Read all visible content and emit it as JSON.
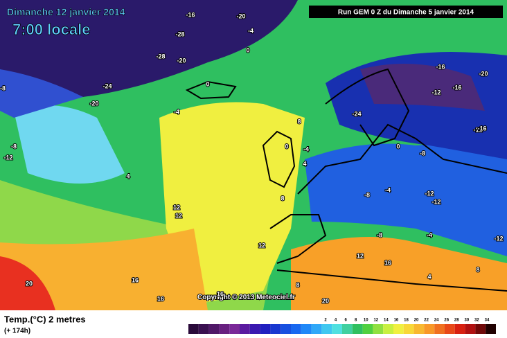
{
  "header": {
    "date": "Dimanche 12 janvier 2014",
    "time": "7:00 locale",
    "run": "Run GEM 0 Z du Dimanche 5 janvier 2014"
  },
  "copyright": "Copyright © 2013 Meteociel.fr",
  "legend": {
    "title": "Temp.(°C) 2 metres",
    "lead": "(+ 174h)",
    "scale_labels": [
      2,
      4,
      6,
      8,
      10,
      12,
      14,
      16,
      18,
      20,
      22,
      24,
      26,
      28,
      30,
      32,
      34
    ]
  },
  "contour_labels": [
    -16,
    -20,
    -28,
    -28,
    -20,
    -4,
    0,
    -24,
    -20,
    -8,
    -8,
    -12,
    4,
    -4,
    0,
    8,
    -4,
    0,
    4,
    8,
    8,
    12,
    12,
    12,
    16,
    16,
    20,
    16,
    -24,
    -16,
    -20,
    -16,
    -12,
    -12,
    -8,
    -4,
    -8,
    -12,
    -12,
    -16,
    -8,
    -4,
    -12,
    0,
    4,
    8,
    12,
    16,
    20
  ]
}
